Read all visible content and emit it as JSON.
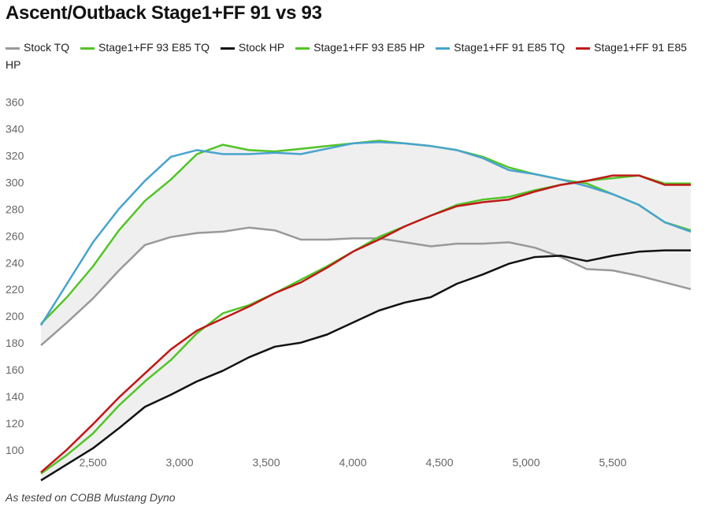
{
  "chart_data": {
    "type": "line",
    "title": "Ascent/Outback Stage1+FF 91 vs 93",
    "note": "As tested on COBB Mustang Dyno",
    "x": [
      2200,
      2350,
      2500,
      2650,
      2800,
      2950,
      3100,
      3250,
      3400,
      3550,
      3700,
      3850,
      4000,
      4150,
      4300,
      4450,
      4600,
      4750,
      4900,
      5050,
      5200,
      5350,
      5500,
      5650,
      5800,
      5950
    ],
    "xlim": [
      2200,
      5950
    ],
    "xticks": [
      {
        "value": 2500,
        "label": "2,500"
      },
      {
        "value": 3000,
        "label": "3,000"
      },
      {
        "value": 3500,
        "label": "3,500"
      },
      {
        "value": 4000,
        "label": "4,000"
      },
      {
        "value": 4500,
        "label": "4,500"
      },
      {
        "value": 5000,
        "label": "5,000"
      },
      {
        "value": 5500,
        "label": "5,500"
      }
    ],
    "ylim": [
      70,
      360
    ],
    "yticks": [
      100,
      120,
      140,
      160,
      180,
      200,
      220,
      240,
      260,
      280,
      300,
      320,
      340,
      360
    ],
    "grid": false,
    "series": [
      {
        "name": "Stock TQ",
        "color": "#999999",
        "values": [
          179,
          196,
          214,
          235,
          254,
          260,
          263,
          264,
          267,
          265,
          258,
          258,
          259,
          259,
          256,
          253,
          255,
          255,
          256,
          252,
          245,
          236,
          235,
          231,
          226,
          221
        ]
      },
      {
        "name": "Stage1+FF 93 E85 TQ",
        "color": "#52c427",
        "values": [
          195,
          215,
          238,
          265,
          287,
          303,
          322,
          329,
          325,
          324,
          326,
          328,
          330,
          332,
          330,
          328,
          325,
          320,
          312,
          307,
          303,
          300,
          292,
          284,
          271,
          265
        ]
      },
      {
        "name": "Stock HP",
        "color": "#111111",
        "values": [
          78,
          90,
          102,
          117,
          133,
          142,
          152,
          160,
          170,
          178,
          181,
          187,
          196,
          205,
          211,
          215,
          225,
          232,
          240,
          245,
          246,
          242,
          246,
          249,
          250,
          250
        ]
      },
      {
        "name": "Stage1+FF 93 E85 HP",
        "color": "#52c427",
        "values": [
          83,
          97,
          113,
          134,
          152,
          168,
          188,
          203,
          209,
          218,
          228,
          238,
          249,
          260,
          268,
          276,
          284,
          288,
          290,
          295,
          299,
          302,
          304,
          306,
          300,
          300
        ]
      },
      {
        "name": "Stage1+FF 91 E85 TQ",
        "color": "#48a3cf",
        "values": [
          194,
          225,
          256,
          281,
          302,
          320,
          325,
          322,
          322,
          323,
          322,
          326,
          330,
          331,
          330,
          328,
          325,
          319,
          310,
          307,
          303,
          298,
          292,
          284,
          271,
          264
        ]
      },
      {
        "name": "Stage1+FF 91 E85 HP",
        "color": "#c01818",
        "values": [
          84,
          101,
          120,
          140,
          158,
          176,
          190,
          199,
          208,
          218,
          226,
          237,
          249,
          258,
          268,
          276,
          283,
          286,
          288,
          294,
          299,
          302,
          306,
          306,
          299,
          299
        ]
      }
    ]
  }
}
